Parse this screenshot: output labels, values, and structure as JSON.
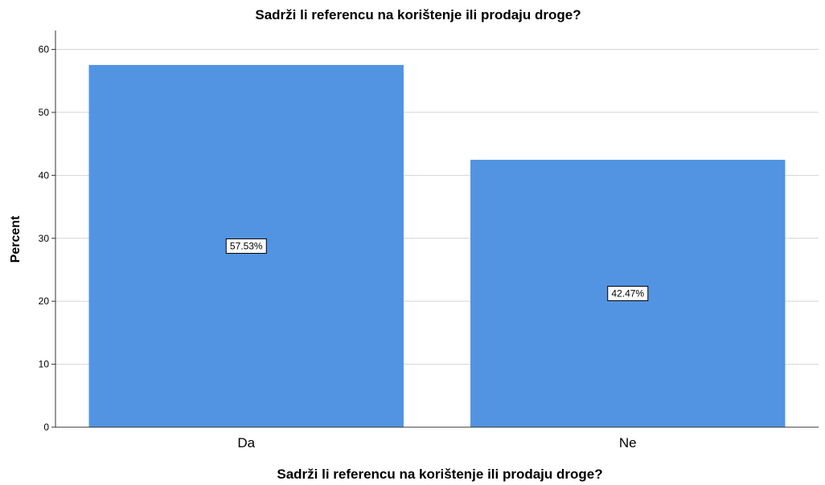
{
  "chart_data": {
    "type": "bar",
    "title": "Sadrži li referencu na korištenje ili prodaju droge?",
    "xlabel": "Sadrži li referencu na korištenje ili prodaju droge?",
    "ylabel": "Percent",
    "categories": [
      "Da",
      "Ne"
    ],
    "values": [
      57.53,
      42.47
    ],
    "data_labels": [
      "57.53%",
      "42.47%"
    ],
    "ylim": [
      0,
      63
    ],
    "yticks": [
      0,
      10,
      20,
      30,
      40,
      50,
      60
    ],
    "grid": true,
    "legend": "none",
    "colors": {
      "bar": "#5294e2",
      "grid": "#d4d4d4",
      "axis": "#333333"
    }
  }
}
